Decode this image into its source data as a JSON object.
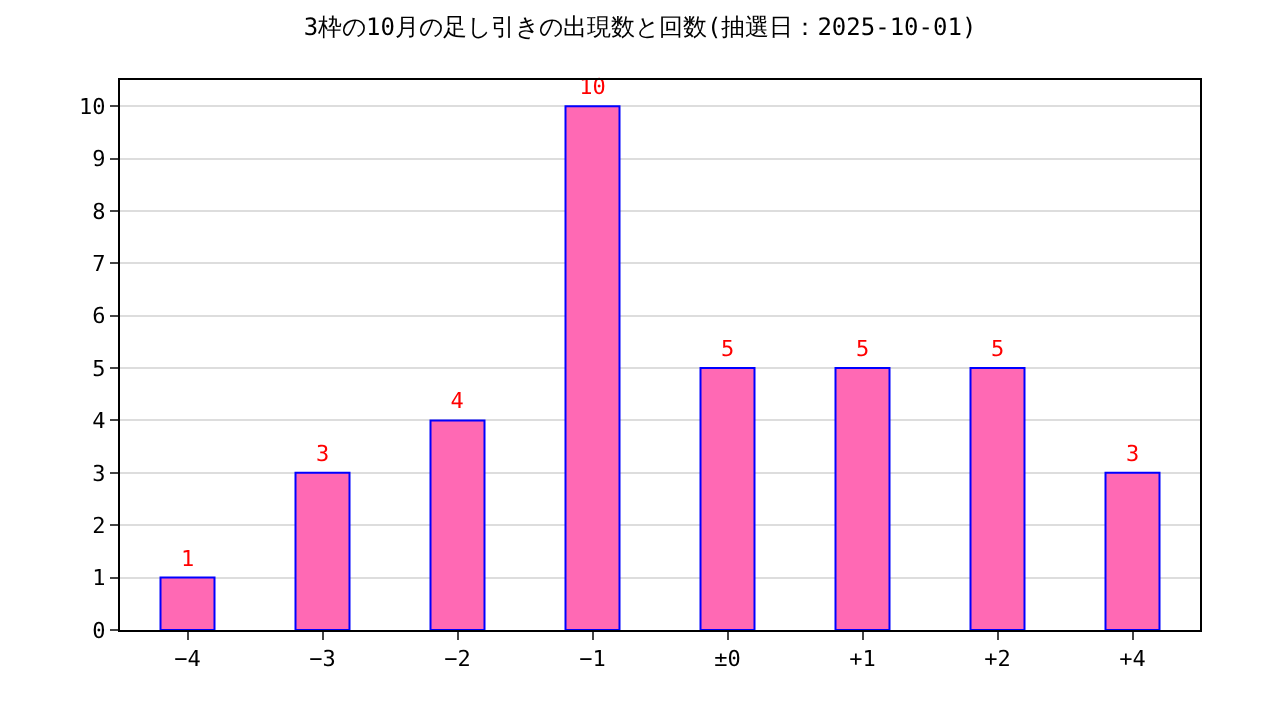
{
  "chart_data": {
    "type": "bar",
    "title": "3枠の10月の足し引きの出現数と回数(抽選日：2025-10-01)",
    "categories": [
      "−4",
      "−3",
      "−2",
      "−1",
      "±0",
      "+1",
      "+2",
      "+4"
    ],
    "values": [
      1,
      3,
      4,
      10,
      5,
      5,
      5,
      3
    ],
    "color": "#ff69b4",
    "ylim": [
      0,
      10.5
    ],
    "yticks": [
      0,
      1,
      2,
      3,
      4,
      5,
      6,
      7,
      8,
      9,
      10
    ],
    "grid": "y",
    "data_labels": true,
    "legend": false
  }
}
